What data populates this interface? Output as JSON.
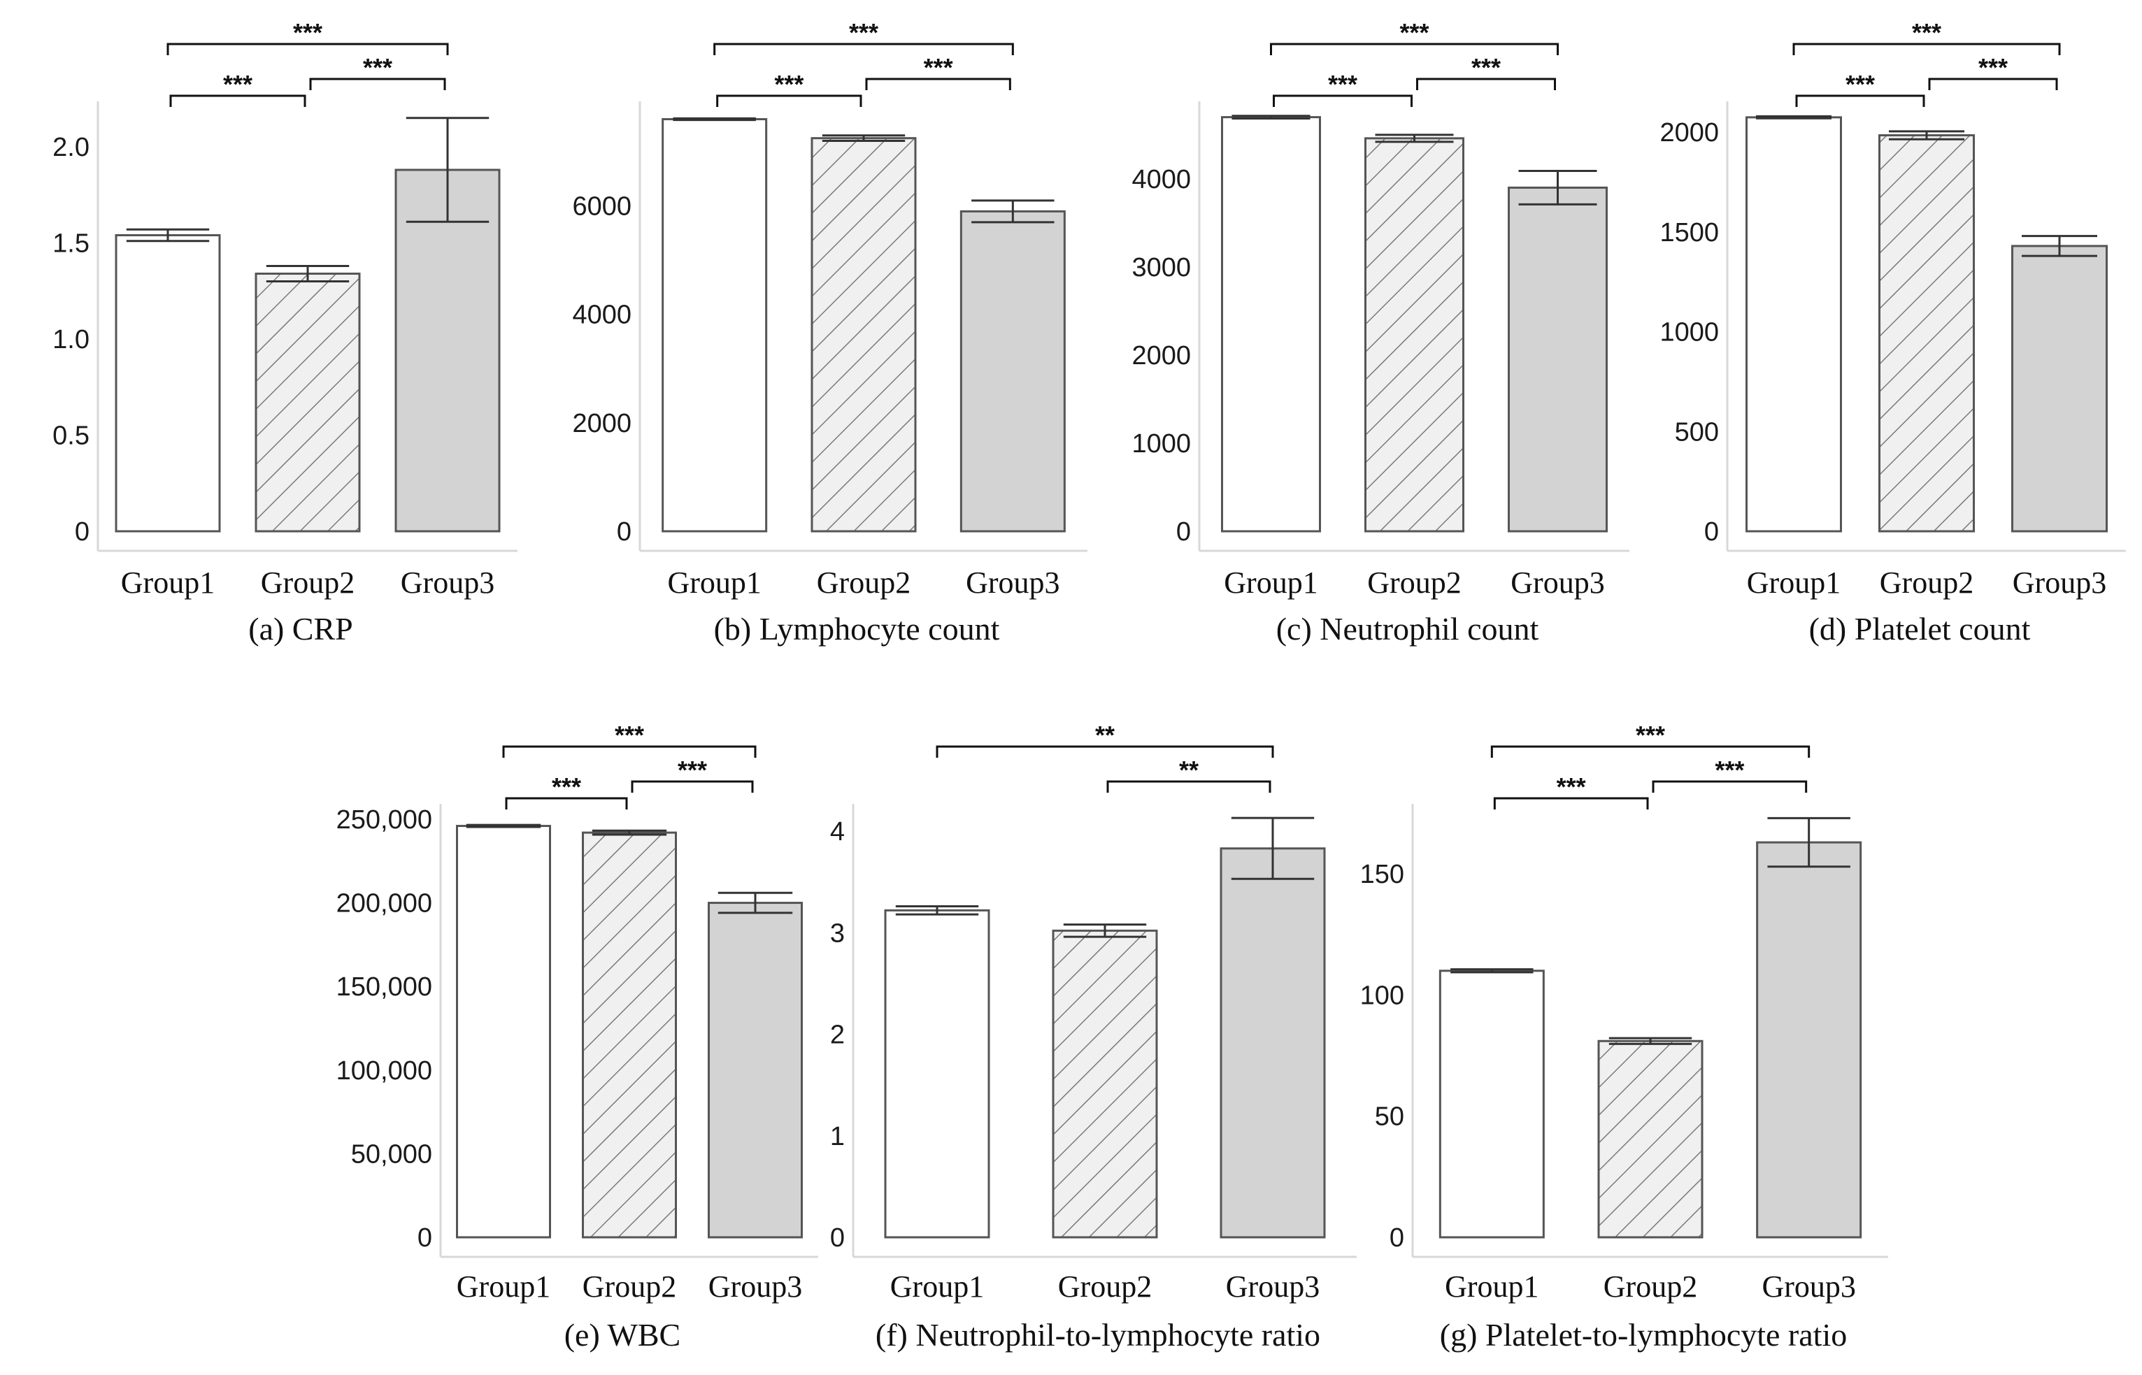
{
  "figure": {
    "background": "#ffffff"
  },
  "chart_data": [
    {
      "id": "a",
      "type": "bar",
      "caption": "(a) CRP",
      "categories": [
        "Group1",
        "Group2",
        "Group3"
      ],
      "values": [
        1.54,
        1.34,
        1.88
      ],
      "errors": [
        0.03,
        0.04,
        0.27
      ],
      "ylim": [
        0,
        2.2
      ],
      "yticks": [
        0,
        0.5,
        1.0,
        1.5,
        2.0
      ],
      "ytick_labels": [
        "0",
        "0.5",
        "1.0",
        "1.5",
        "2.0"
      ],
      "significance": [
        {
          "from": 0,
          "to": 2,
          "label": "***"
        },
        {
          "from": 0,
          "to": 1,
          "label": "***"
        },
        {
          "from": 1,
          "to": 2,
          "label": "***"
        }
      ]
    },
    {
      "id": "b",
      "type": "bar",
      "caption": "(b) Lymphocyte count",
      "categories": [
        "Group1",
        "Group2",
        "Group3"
      ],
      "values": [
        7600,
        7250,
        5900
      ],
      "errors": [
        15,
        50,
        200
      ],
      "ylim": [
        0,
        7800
      ],
      "yticks": [
        0,
        2000,
        4000,
        6000
      ],
      "ytick_labels": [
        "0",
        "2000",
        "4000",
        "6000"
      ],
      "significance": [
        {
          "from": 0,
          "to": 2,
          "label": "***"
        },
        {
          "from": 0,
          "to": 1,
          "label": "***"
        },
        {
          "from": 1,
          "to": 2,
          "label": "***"
        }
      ]
    },
    {
      "id": "c",
      "type": "bar",
      "caption": "(c) Neutrophil count",
      "categories": [
        "Group1",
        "Group2",
        "Group3"
      ],
      "values": [
        4700,
        4460,
        3900
      ],
      "errors": [
        15,
        40,
        190
      ],
      "ylim": [
        0,
        4800
      ],
      "yticks": [
        0,
        1000,
        2000,
        3000,
        4000
      ],
      "ytick_labels": [
        "0",
        "1000",
        "2000",
        "3000",
        "4000"
      ],
      "significance": [
        {
          "from": 0,
          "to": 2,
          "label": "***"
        },
        {
          "from": 0,
          "to": 1,
          "label": "***"
        },
        {
          "from": 1,
          "to": 2,
          "label": "***"
        }
      ]
    },
    {
      "id": "d",
      "type": "bar",
      "caption": "(d) Platelet count",
      "categories": [
        "Group1",
        "Group2",
        "Group3"
      ],
      "values": [
        2075,
        1985,
        1430
      ],
      "errors": [
        5,
        20,
        50
      ],
      "ylim": [
        0,
        2120
      ],
      "yticks": [
        0,
        500,
        1000,
        1500,
        2000
      ],
      "ytick_labels": [
        "0",
        "500",
        "1000",
        "1500",
        "2000"
      ],
      "significance": [
        {
          "from": 0,
          "to": 2,
          "label": "***"
        },
        {
          "from": 0,
          "to": 1,
          "label": "***"
        },
        {
          "from": 1,
          "to": 2,
          "label": "***"
        }
      ]
    },
    {
      "id": "e",
      "type": "bar",
      "caption": "(e) WBC",
      "categories": [
        "Group1",
        "Group2",
        "Group3"
      ],
      "values": [
        246000,
        242000,
        200000
      ],
      "errors": [
        600,
        1200,
        6000
      ],
      "ylim": [
        0,
        255000
      ],
      "yticks": [
        0,
        50000,
        100000,
        150000,
        200000,
        250000
      ],
      "ytick_labels": [
        "0",
        "50,000",
        "100,000",
        "150,000",
        "200,000",
        "250,000"
      ],
      "significance": [
        {
          "from": 0,
          "to": 2,
          "label": "***"
        },
        {
          "from": 0,
          "to": 1,
          "label": "***"
        },
        {
          "from": 1,
          "to": 2,
          "label": "***"
        }
      ]
    },
    {
      "id": "f",
      "type": "bar",
      "caption": "(f) Neutrophil-to-lymphocyte ratio",
      "categories": [
        "Group1",
        "Group2",
        "Group3"
      ],
      "values": [
        3.22,
        3.02,
        3.83
      ],
      "errors": [
        0.04,
        0.06,
        0.3
      ],
      "ylim": [
        0,
        4.2
      ],
      "yticks": [
        0,
        1,
        2,
        3,
        4
      ],
      "ytick_labels": [
        "0",
        "1",
        "2",
        "3",
        "4"
      ],
      "significance": [
        {
          "from": 0,
          "to": 2,
          "label": "**"
        },
        {
          "from": 1,
          "to": 2,
          "label": "**"
        }
      ]
    },
    {
      "id": "g",
      "type": "bar",
      "caption": "(g) Platelet-to-lymphocyte ratio",
      "categories": [
        "Group1",
        "Group2",
        "Group3"
      ],
      "values": [
        110,
        81,
        163
      ],
      "errors": [
        0.6,
        1.2,
        10
      ],
      "ylim": [
        0,
        176
      ],
      "yticks": [
        0,
        50,
        100,
        150
      ],
      "ytick_labels": [
        "0",
        "50",
        "100",
        "150"
      ],
      "significance": [
        {
          "from": 0,
          "to": 2,
          "label": "***"
        },
        {
          "from": 0,
          "to": 1,
          "label": "***"
        },
        {
          "from": 1,
          "to": 2,
          "label": "***"
        }
      ]
    }
  ]
}
